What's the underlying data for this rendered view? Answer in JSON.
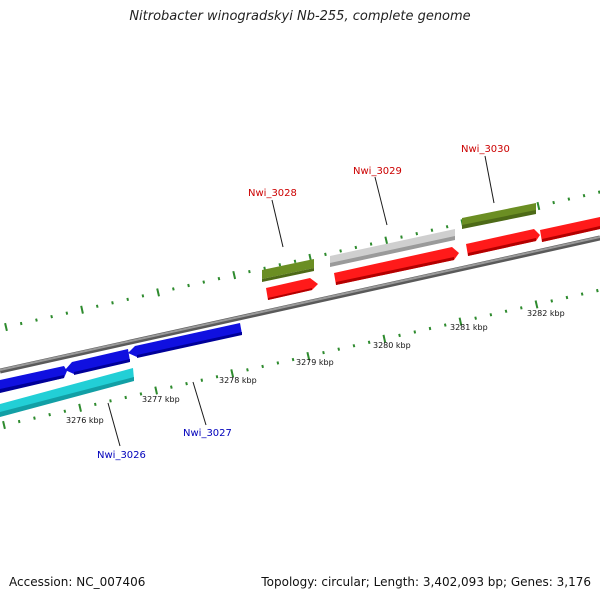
{
  "title": "Nitrobacter winogradskyi Nb-255, complete genome",
  "footer": {
    "accession": "Accession: NC_007406",
    "summary": "Topology: circular; Length: 3,402,093 bp; Genes: 3,176"
  },
  "colors": {
    "backbone": "#8a8a8a",
    "tick": "#2e8b2e",
    "forward_gene": "#ff1a1a",
    "reverse_gene": "#1010e0",
    "trna_like": "#22cfd6",
    "green_feature": "#6b8e23",
    "grey_feature": "#c8c8c8",
    "label_forward": "#cc0000",
    "label_reverse": "#0000bb"
  },
  "scale": {
    "kbp_labels": [
      "3276 kbp",
      "3277 kbp",
      "3278 kbp",
      "3279 kbp",
      "3280 kbp",
      "3281 kbp",
      "3282 kbp"
    ]
  },
  "gene_labels": {
    "nwi_3026": "Nwi_3026",
    "nwi_3027": "Nwi_3027",
    "nwi_3028": "Nwi_3028",
    "nwi_3029": "Nwi_3029",
    "nwi_3030": "Nwi_3030"
  }
}
